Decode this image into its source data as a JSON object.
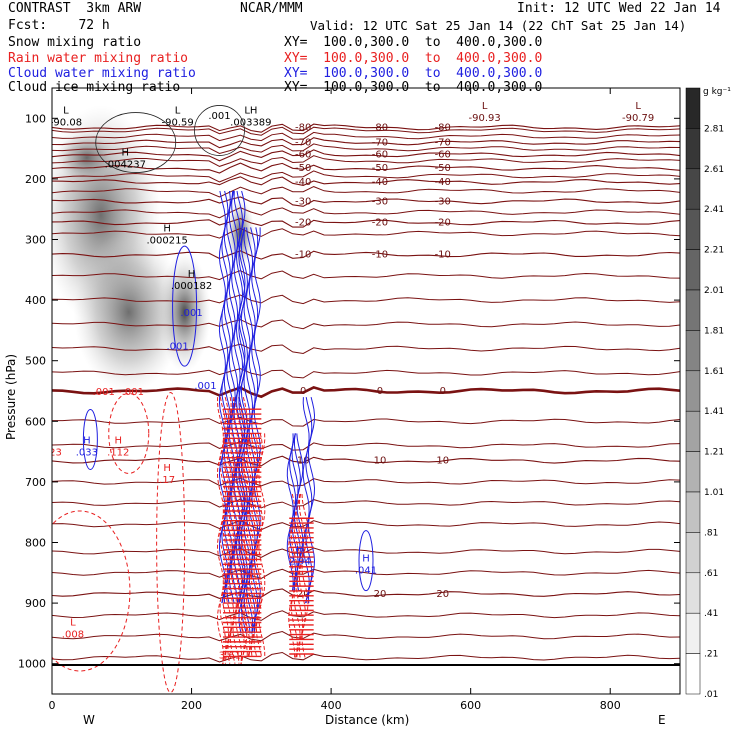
{
  "header": {
    "line1_left": "CONTRAST  3km ARW",
    "line1_center": "NCAR/MMM",
    "line1_right": "Init: 12 UTC Wed 22 Jan 14",
    "line2_left": "Fcst:    72 h",
    "line2_right": "Valid: 12 UTC Sat 25 Jan 14 (22 ChT Sat 25 Jan 14)",
    "fields": [
      {
        "name": "Snow mixing ratio",
        "xy": "XY=  100.0,300.0  to  400.0,300.0",
        "color": "#000000"
      },
      {
        "name": "Rain water mixing ratio",
        "xy": "XY=  100.0,300.0  to  400.0,300.0",
        "color": "#e82020"
      },
      {
        "name": "Cloud water mixing ratio",
        "xy": "XY=  100.0,300.0  to  400.0,300.0",
        "color": "#2020e0"
      },
      {
        "name": "Cloud ice mixing ratio",
        "xy": "XY=  100.0,300.0  to  400.0,300.0",
        "color": "#000000"
      }
    ]
  },
  "chart_data": {
    "type": "cross-section contour",
    "xlabel": "Distance (km)",
    "ylabel": "Pressure (hPa)",
    "xlim": [
      0,
      900
    ],
    "ylim": [
      1050,
      50
    ],
    "xticks": [
      0,
      200,
      400,
      600,
      800
    ],
    "yticks": [
      100,
      200,
      300,
      400,
      500,
      600,
      700,
      800,
      900,
      1000
    ],
    "x_end_labels": {
      "left": "W",
      "right": "E"
    },
    "colorbar": {
      "unit": "g kg⁻¹",
      "levels": [
        "2.81",
        "2.61",
        "2.41",
        "2.21",
        "2.01",
        "1.81",
        "1.61",
        "1.41",
        "1.21",
        "1.01",
        ".81",
        ".61",
        ".41",
        ".21",
        ".01"
      ]
    },
    "temperature_contours": [
      {
        "level": -80,
        "label": "-80",
        "pressure": 115
      },
      {
        "level": -70,
        "label": "-70",
        "pressure": 140
      },
      {
        "level": -60,
        "label": "-60",
        "pressure": 160
      },
      {
        "level": -50,
        "label": "-50",
        "pressure": 182
      },
      {
        "level": -40,
        "label": "-40",
        "pressure": 205
      },
      {
        "level": -30,
        "label": "-30",
        "pressure": 237
      },
      {
        "level": -20,
        "label": "-20",
        "pressure": 272
      },
      {
        "level": -10,
        "label": "-10",
        "pressure": 325
      },
      {
        "level": 0,
        "label": "0",
        "pressure": 550
      },
      {
        "level": 10,
        "label": "10",
        "pressure": 665
      },
      {
        "level": 20,
        "label": "20",
        "pressure": 885
      }
    ],
    "extrema_labels": [
      {
        "tag": "L",
        "value": "-90.08",
        "x": 20,
        "p": 95,
        "color": "#000000"
      },
      {
        "tag": "L",
        "value": "-90.59",
        "x": 180,
        "p": 95,
        "color": "#000000"
      },
      {
        "tag": "LH",
        "value": ".003389",
        "x": 285,
        "p": 95,
        "color": "#000000"
      },
      {
        "tag": "",
        "value": ".001",
        "x": 240,
        "p": 85,
        "color": "#000000"
      },
      {
        "tag": "L",
        "value": "-90.93",
        "x": 620,
        "p": 88,
        "color": "#6b1010"
      },
      {
        "tag": "L",
        "value": "-90.79",
        "x": 840,
        "p": 88,
        "color": "#6b1010"
      },
      {
        "tag": "H",
        "value": ".004237",
        "x": 105,
        "p": 165,
        "color": "#000000"
      },
      {
        "tag": "H",
        "value": ".000215",
        "x": 165,
        "p": 290,
        "color": "#000000"
      },
      {
        "tag": "H",
        "value": ".000182",
        "x": 200,
        "p": 365,
        "color": "#000000"
      },
      {
        "tag": "",
        "value": ".001",
        "x": 200,
        "p": 410,
        "color": "#2020e0"
      },
      {
        "tag": "",
        "value": ".001",
        "x": 180,
        "p": 465,
        "color": "#2020e0"
      },
      {
        "tag": "",
        "value": ".001",
        "x": 220,
        "p": 530,
        "color": "#2020e0"
      },
      {
        "tag": "",
        "value": ".001 -.001",
        "x": 95,
        "p": 540,
        "color": "#e82020"
      },
      {
        "tag": "H",
        "value": ".033",
        "x": 50,
        "p": 640,
        "color": "#2020e0"
      },
      {
        "tag": "H",
        "value": ".112",
        "x": 95,
        "p": 640,
        "color": "#e82020"
      },
      {
        "tag": "",
        "value": "23",
        "x": 5,
        "p": 640,
        "color": "#e82020"
      },
      {
        "tag": "H",
        "value": ".17",
        "x": 165,
        "p": 685,
        "color": "#e82020"
      },
      {
        "tag": "H",
        "value": "2.94",
        "x": 355,
        "p": 820,
        "color": "#2020e0"
      },
      {
        "tag": "H",
        "value": ".041",
        "x": 450,
        "p": 835,
        "color": "#2020e0"
      },
      {
        "tag": "L",
        "value": ".008",
        "x": 30,
        "p": 940,
        "color": "#e82020"
      },
      {
        "tag": "",
        "value": "3.61",
        "x": 255,
        "p": 975,
        "color": "#e82020"
      }
    ]
  }
}
